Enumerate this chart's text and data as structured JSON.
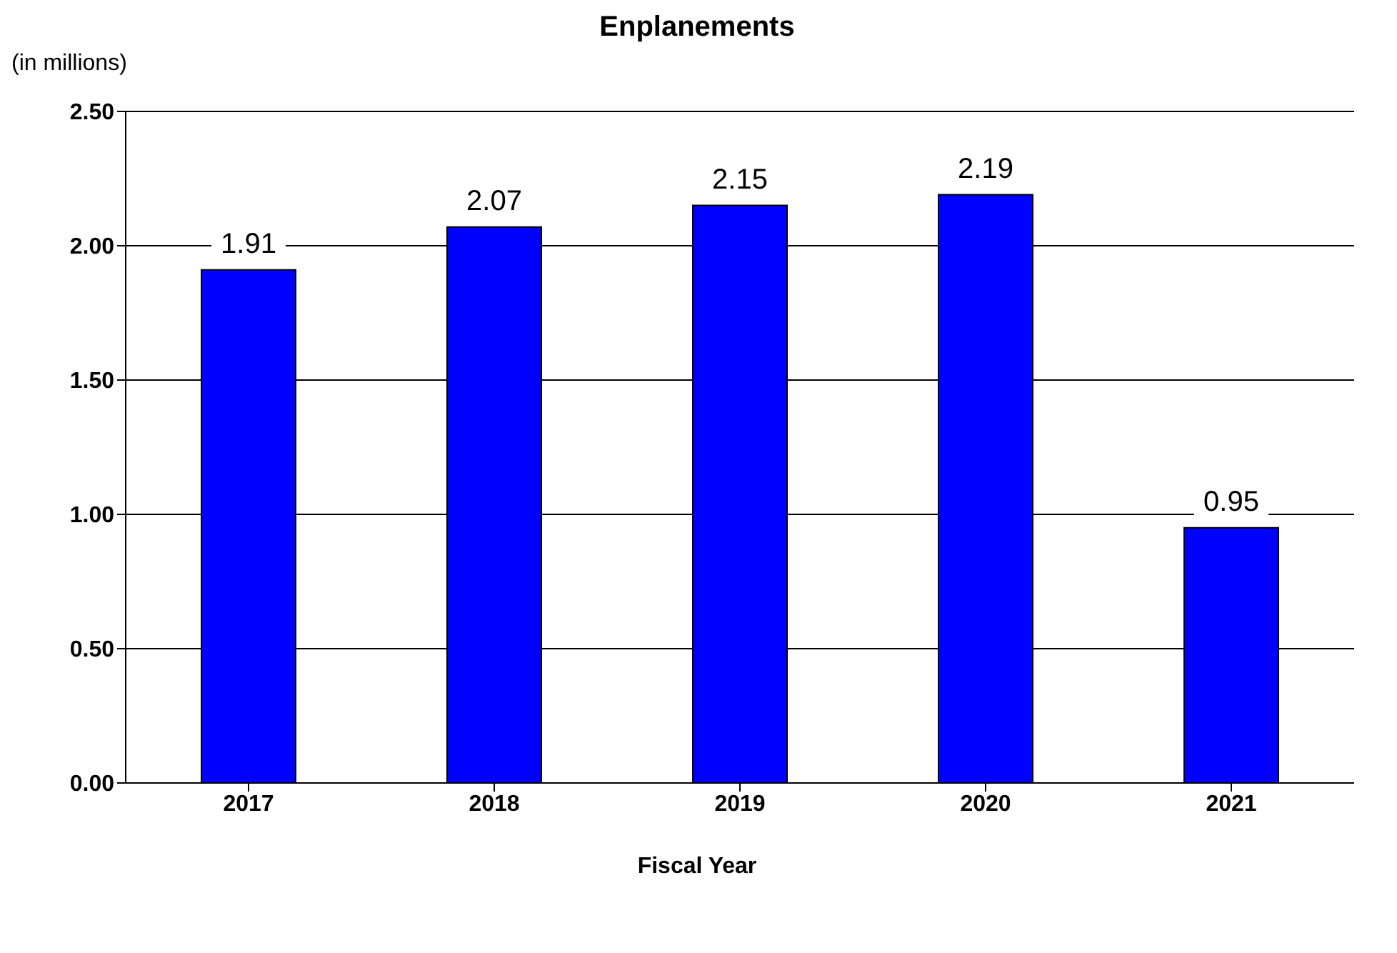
{
  "chart_data": {
    "type": "bar",
    "title": "Enplanements",
    "ylabel": "(in millions)",
    "xlabel": "Fiscal Year",
    "categories": [
      "2017",
      "2018",
      "2019",
      "2020",
      "2021"
    ],
    "values": [
      1.91,
      2.07,
      2.15,
      2.19,
      0.95
    ],
    "color": "#0000ff",
    "ylim": [
      0,
      2.5
    ],
    "yticks": [
      {
        "value": 0,
        "label": "0.00"
      },
      {
        "value": 0.5,
        "label": "0.50"
      },
      {
        "value": 1,
        "label": "1.00"
      },
      {
        "value": 1.5,
        "label": "1.50"
      },
      {
        "value": 2,
        "label": "2.00"
      },
      {
        "value": 2.5,
        "label": "2.50"
      }
    ],
    "grid": "y",
    "data_labels": true
  }
}
